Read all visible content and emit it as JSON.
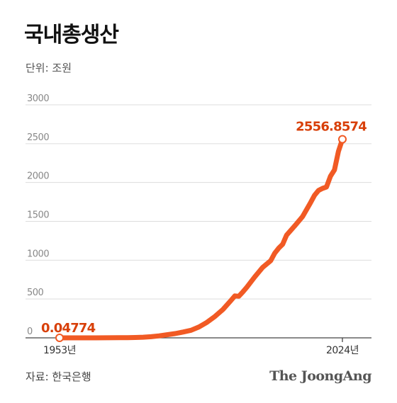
{
  "title": "국내총생산",
  "unit_label": "단위: 조원",
  "source": "자료: 한국은행",
  "brand": "The JoongAng",
  "colors": {
    "line": "#f15a24",
    "label": "#d8400a",
    "grid": "#dddddd",
    "axis": "#444444",
    "tick_text": "#888888"
  },
  "chart_data": {
    "type": "line",
    "title": "국내총생산",
    "ylabel": "단위: 조원",
    "ylim": [
      0,
      3000
    ],
    "yticks": [
      0,
      500,
      1000,
      1500,
      2000,
      2500,
      3000
    ],
    "xlim": [
      1953,
      2024
    ],
    "x_tick_labels": [
      "1953년",
      "2024년"
    ],
    "grid": true,
    "series": [
      {
        "points": [
          [
            1953,
            0.04774
          ],
          [
            1955,
            0.12
          ],
          [
            1958,
            0.2
          ],
          [
            1960,
            0.25
          ],
          [
            1962,
            0.36
          ],
          [
            1965,
            0.81
          ],
          [
            1968,
            1.6
          ],
          [
            1970,
            2.8
          ],
          [
            1972,
            4.3
          ],
          [
            1974,
            8.2
          ],
          [
            1976,
            14.5
          ],
          [
            1978,
            25.2
          ],
          [
            1980,
            40
          ],
          [
            1982,
            55
          ],
          [
            1984,
            75
          ],
          [
            1986,
            98
          ],
          [
            1988,
            140
          ],
          [
            1990,
            200
          ],
          [
            1992,
            275
          ],
          [
            1994,
            365
          ],
          [
            1996,
            480
          ],
          [
            1997,
            540
          ],
          [
            1998,
            535
          ],
          [
            1999,
            591
          ],
          [
            2000,
            651
          ],
          [
            2002,
            785
          ],
          [
            2004,
            908
          ],
          [
            2006,
            993
          ],
          [
            2007,
            1090
          ],
          [
            2008,
            1154
          ],
          [
            2009,
            1205
          ],
          [
            2010,
            1323
          ],
          [
            2012,
            1440
          ],
          [
            2014,
            1562
          ],
          [
            2016,
            1740
          ],
          [
            2017,
            1836
          ],
          [
            2018,
            1898
          ],
          [
            2019,
            1924
          ],
          [
            2020,
            1941
          ],
          [
            2021,
            2080
          ],
          [
            2022,
            2162
          ],
          [
            2023,
            2401
          ],
          [
            2024,
            2556.8574
          ]
        ]
      }
    ],
    "annotations": [
      {
        "x": 1953,
        "y": 0.04774,
        "text": "0.04774"
      },
      {
        "x": 2024,
        "y": 2556.8574,
        "text": "2556.8574"
      }
    ]
  }
}
